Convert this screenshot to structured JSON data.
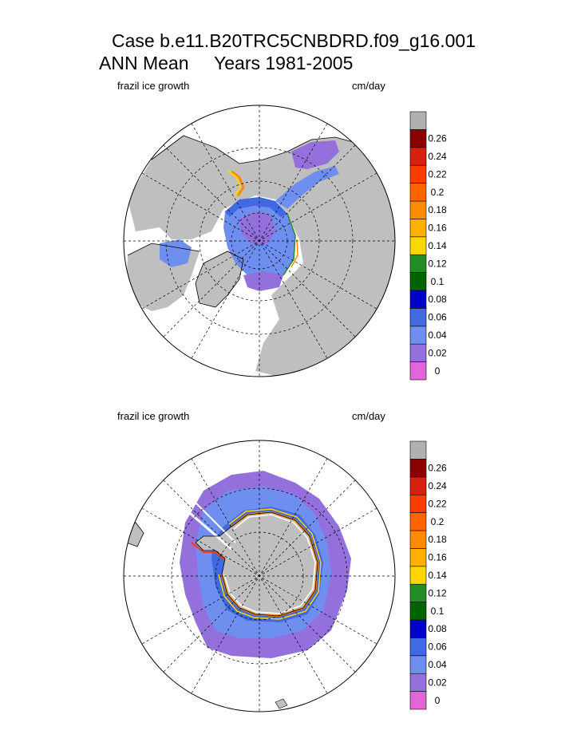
{
  "header": {
    "title_line1": "Case b.e11.B20TRC5CNBDRD.f09_g16.001",
    "title_line2": "ANN Mean     Years 1981-2005"
  },
  "colors": {
    "land": "#bfbfbf",
    "colorbar": [
      "#e366d8",
      "#9370db",
      "#6f8ff0",
      "#4169e1",
      "#0000cd",
      "#006400",
      "#228b22",
      "#ffd700",
      "#ffb000",
      "#ff8c00",
      "#ff6400",
      "#ff3c00",
      "#d82010",
      "#8b0000",
      "#b0b0b0"
    ]
  },
  "chart_data": [
    {
      "type": "heatmap",
      "projection": "polar stereographic (Northern Hemisphere)",
      "variable_label": "frazil ice growth",
      "units_label": "cm/day",
      "colorbar_ticks": [
        "0",
        "0.02",
        "0.04",
        "0.06",
        "0.08",
        "0.1",
        "0.12",
        "0.14",
        "0.16",
        "0.18",
        "0.2",
        "0.22",
        "0.24",
        "0.26"
      ],
      "colorbar_bins": 15,
      "grid": true
    },
    {
      "type": "heatmap",
      "projection": "polar stereographic (Southern Hemisphere)",
      "variable_label": "frazil ice growth",
      "units_label": "cm/day",
      "colorbar_ticks": [
        "0",
        "0.02",
        "0.04",
        "0.06",
        "0.08",
        "0.1",
        "0.12",
        "0.14",
        "0.16",
        "0.18",
        "0.2",
        "0.22",
        "0.24",
        "0.26"
      ],
      "colorbar_bins": 15,
      "grid": true
    }
  ]
}
